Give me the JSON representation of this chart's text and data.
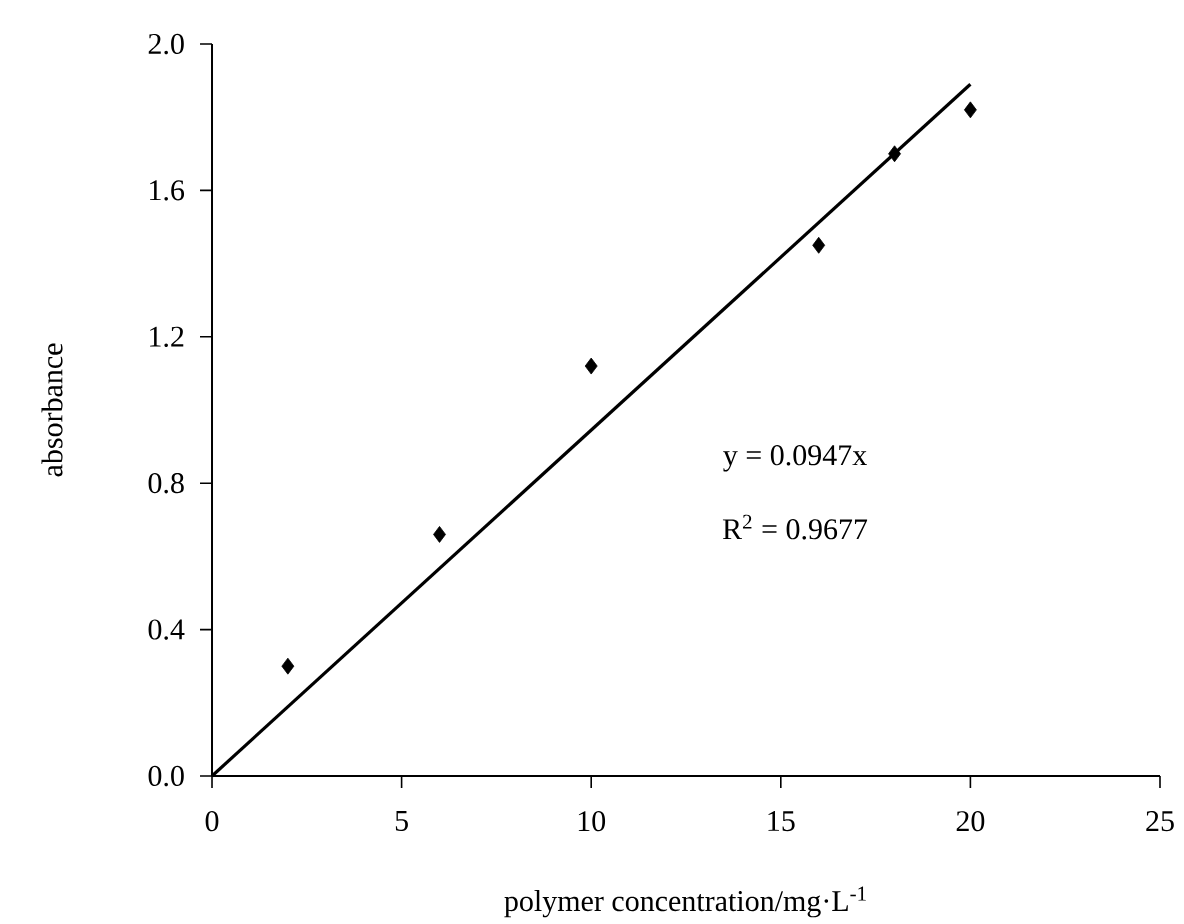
{
  "chart_data": {
    "type": "scatter",
    "xlabel": "polymer concentration/mg·L$^{-1}$",
    "ylabel": "absorbance",
    "x": [
      2,
      6,
      10,
      16,
      18,
      20
    ],
    "series": [
      {
        "color": "#000000",
        "marker": "diamond",
        "values": [
          0.3,
          0.66,
          1.12,
          1.45,
          1.7,
          1.82
        ]
      },
      {
        "type": "line",
        "x": [
          0,
          20
        ],
        "color": "#000000",
        "marker": "none",
        "values": [
          0,
          1.89
        ]
      }
    ],
    "xlim": [
      0,
      25
    ],
    "ylim": [
      0,
      2.0
    ],
    "xticks": [
      0,
      5,
      10,
      15,
      20,
      25
    ],
    "yticks": [
      {
        "value": 0,
        "label": "0.0"
      },
      {
        "value": 0.4,
        "label": "0.4"
      },
      {
        "value": 0.8,
        "label": "0.8"
      },
      {
        "value": 1.2,
        "label": "1.2"
      },
      {
        "value": 1.6,
        "label": "1.6"
      },
      {
        "value": 2.0,
        "label": "2.0"
      }
    ],
    "annotations": [
      "y = 0.0947x",
      "R$^{2}$ = 0.9677"
    ],
    "grid": false
  }
}
